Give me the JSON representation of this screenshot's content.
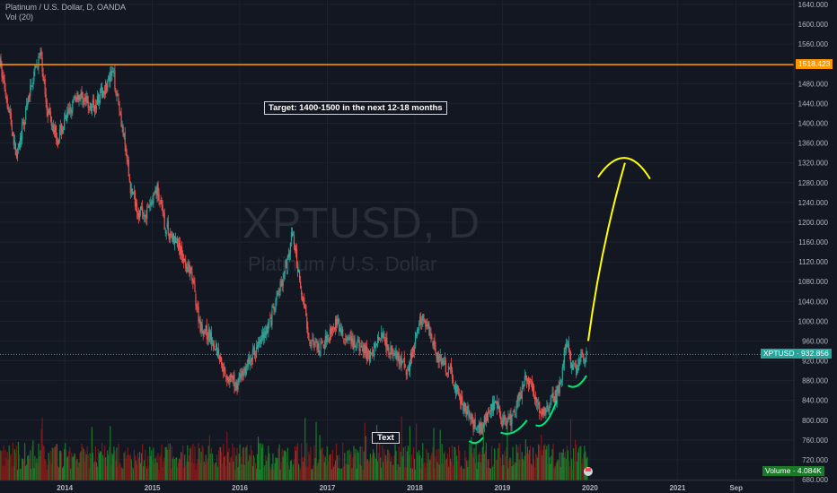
{
  "header": {
    "symbol_line": "Platinum / U.S. Dollar, D, OANDA",
    "volume_line": "Vol (20)"
  },
  "watermark": {
    "ticker": "XPTUSD, D",
    "name": "Platinum / U.S. Dollar"
  },
  "annotations": {
    "target_note": "Target: 1400-1500 in the next 12-18 months",
    "text_label": "Text"
  },
  "price_tags": {
    "resistance": "1518.423",
    "current": "XPTUSD · 932.856",
    "volume": "Volume · 4.084K"
  },
  "colors": {
    "background": "#131722",
    "grid": "#1e222d",
    "up": "#26a69a",
    "down": "#ef5350",
    "resistance_line": "#ff9800",
    "arrow": "#ffff00",
    "marker": "#00e676",
    "vol_up": "#1b8a2e",
    "vol_down": "#8b1a1a"
  },
  "chart_data": {
    "type": "candlestick",
    "symbol": "XPTUSD",
    "timeframe": "D",
    "ylim": [
      680,
      1640
    ],
    "y_ticks": [
      "1640.000",
      "1600.000",
      "1560.000",
      "1520.000",
      "1480.000",
      "1440.000",
      "1400.000",
      "1360.000",
      "1320.000",
      "1280.000",
      "1240.000",
      "1200.000",
      "1160.000",
      "1120.000",
      "1080.000",
      "1040.000",
      "1000.000",
      "960.000",
      "920.000",
      "880.000",
      "840.000",
      "800.000",
      "760.000",
      "720.000",
      "680.000"
    ],
    "x_ticks": [
      {
        "label": "2014",
        "t": 2014.0
      },
      {
        "label": "2015",
        "t": 2015.0
      },
      {
        "label": "2016",
        "t": 2016.0
      },
      {
        "label": "2017",
        "t": 2017.0
      },
      {
        "label": "2018",
        "t": 2018.0
      },
      {
        "label": "2019",
        "t": 2019.0
      },
      {
        "label": "2020",
        "t": 2020.0
      },
      {
        "label": "2021",
        "t": 2021.0
      },
      {
        "label": "Sep",
        "t": 2021.67
      }
    ],
    "xlim": [
      2013.26,
      2022.33
    ],
    "price_path": [
      [
        2013.26,
        1520
      ],
      [
        2013.35,
        1440
      ],
      [
        2013.45,
        1330
      ],
      [
        2013.52,
        1390
      ],
      [
        2013.62,
        1480
      ],
      [
        2013.72,
        1540
      ],
      [
        2013.8,
        1430
      ],
      [
        2013.92,
        1370
      ],
      [
        2014.02,
        1410
      ],
      [
        2014.15,
        1460
      ],
      [
        2014.3,
        1430
      ],
      [
        2014.45,
        1470
      ],
      [
        2014.55,
        1500
      ],
      [
        2014.62,
        1440
      ],
      [
        2014.75,
        1270
      ],
      [
        2014.85,
        1220
      ],
      [
        2014.95,
        1220
      ],
      [
        2015.05,
        1270
      ],
      [
        2015.15,
        1190
      ],
      [
        2015.3,
        1150
      ],
      [
        2015.45,
        1090
      ],
      [
        2015.55,
        990
      ],
      [
        2015.7,
        960
      ],
      [
        2015.85,
        890
      ],
      [
        2015.95,
        870
      ],
      [
        2016.05,
        900
      ],
      [
        2016.2,
        950
      ],
      [
        2016.35,
        1000
      ],
      [
        2016.45,
        1060
      ],
      [
        2016.55,
        1130
      ],
      [
        2016.6,
        1180
      ],
      [
        2016.68,
        1090
      ],
      [
        2016.8,
        960
      ],
      [
        2016.9,
        940
      ],
      [
        2017.0,
        970
      ],
      [
        2017.1,
        1000
      ],
      [
        2017.2,
        960
      ],
      [
        2017.35,
        950
      ],
      [
        2017.5,
        930
      ],
      [
        2017.62,
        980
      ],
      [
        2017.72,
        940
      ],
      [
        2017.82,
        920
      ],
      [
        2017.92,
        900
      ],
      [
        2018.0,
        960
      ],
      [
        2018.08,
        1010
      ],
      [
        2018.15,
        990
      ],
      [
        2018.28,
        920
      ],
      [
        2018.4,
        900
      ],
      [
        2018.52,
        840
      ],
      [
        2018.62,
        810
      ],
      [
        2018.7,
        780
      ],
      [
        2018.78,
        790
      ],
      [
        2018.88,
        830
      ],
      [
        2018.95,
        820
      ],
      [
        2019.0,
        800
      ],
      [
        2019.1,
        800
      ],
      [
        2019.2,
        850
      ],
      [
        2019.28,
        890
      ],
      [
        2019.36,
        860
      ],
      [
        2019.45,
        810
      ],
      [
        2019.55,
        840
      ],
      [
        2019.62,
        850
      ],
      [
        2019.68,
        890
      ],
      [
        2019.72,
        960
      ],
      [
        2019.78,
        920
      ],
      [
        2019.85,
        900
      ],
      [
        2019.92,
        930
      ],
      [
        2019.98,
        940
      ]
    ],
    "resistance_level": 1518.423,
    "current_price": 932.856,
    "volume_last": "4.084K"
  }
}
